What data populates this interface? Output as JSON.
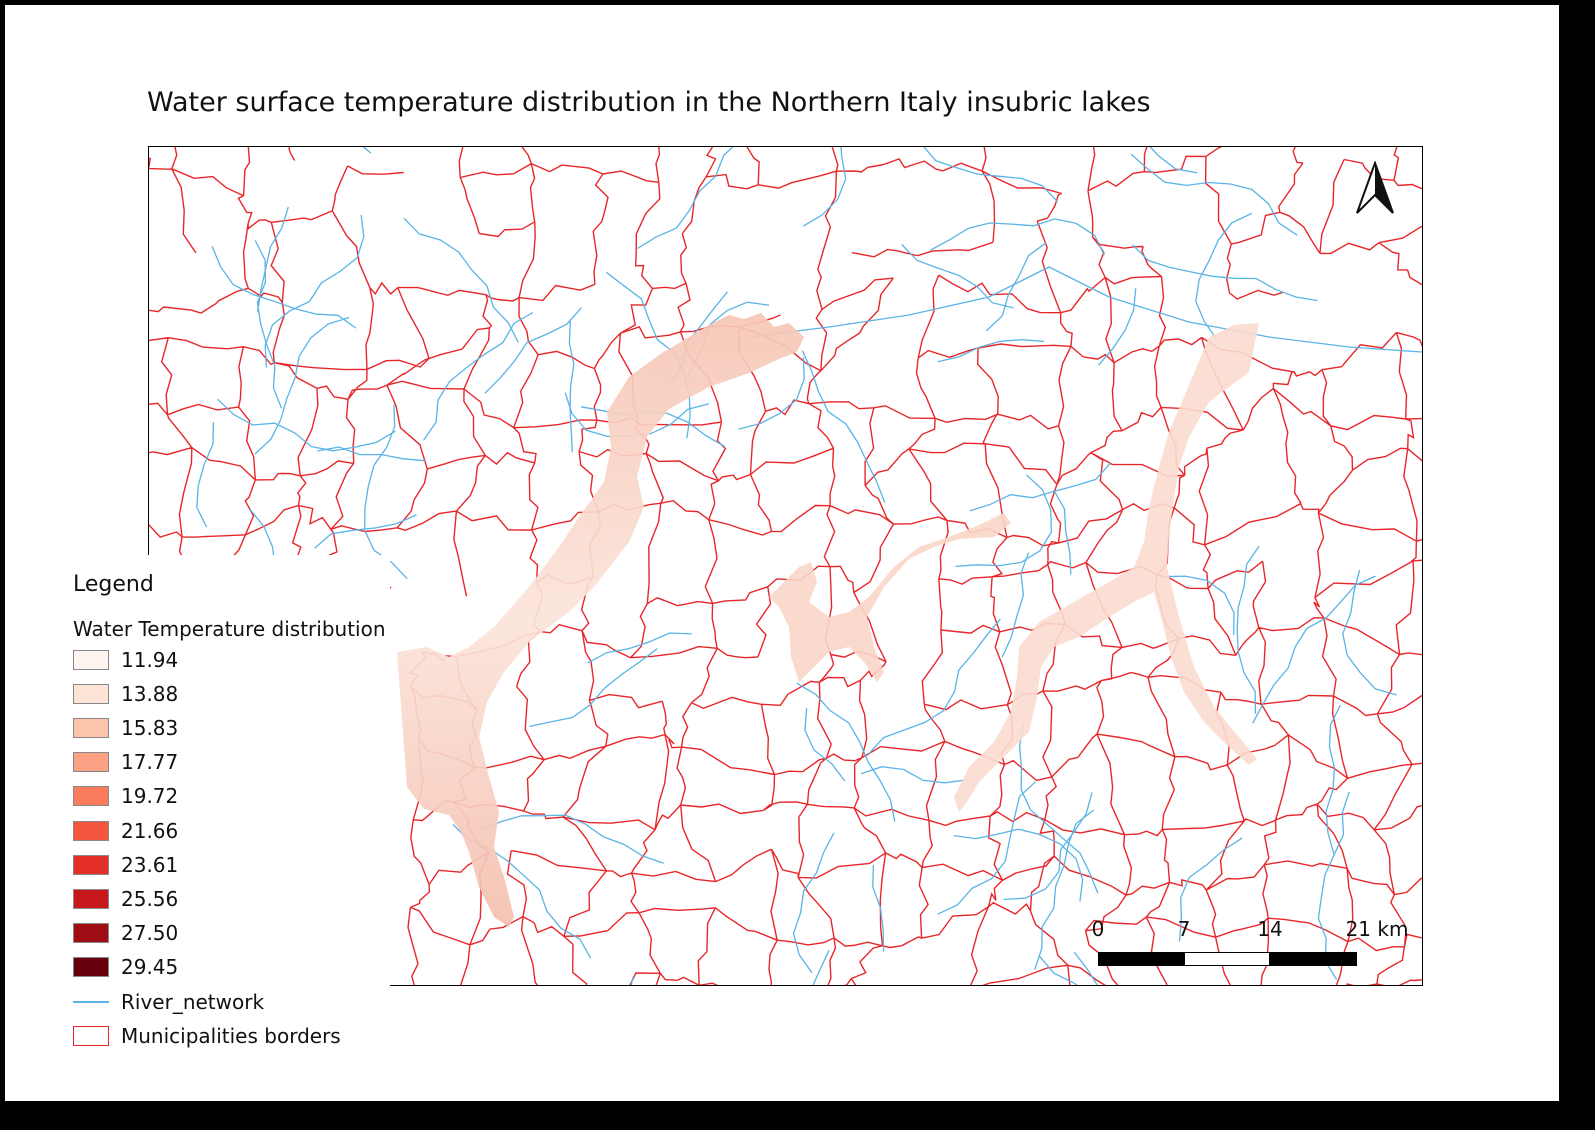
{
  "title": "Water surface temperature distribution in the Northern Italy insubric lakes",
  "legend": {
    "heading": "Legend",
    "raster_title": "Water Temperature distribution",
    "classes": [
      {
        "label": "11.94",
        "color": "#fff5f0"
      },
      {
        "label": "13.88",
        "color": "#fee3d7"
      },
      {
        "label": "15.83",
        "color": "#fcc4ab"
      },
      {
        "label": "17.77",
        "color": "#fca183"
      },
      {
        "label": "19.72",
        "color": "#fb7c5c"
      },
      {
        "label": "21.66",
        "color": "#f4573d"
      },
      {
        "label": "23.61",
        "color": "#e32f27"
      },
      {
        "label": "25.56",
        "color": "#c6171b"
      },
      {
        "label": "27.50",
        "color": "#a00e15"
      },
      {
        "label": "29.45",
        "color": "#67000d"
      }
    ],
    "river_label": "River_network",
    "river_color": "#5ab4e6",
    "border_label": "Municipalities borders",
    "border_color": "#e8262a"
  },
  "scalebar": {
    "labels": [
      "0",
      "7",
      "14",
      "21 km"
    ]
  },
  "north_arrow": "north-arrow-icon",
  "lake_color": "#f9d3c3"
}
